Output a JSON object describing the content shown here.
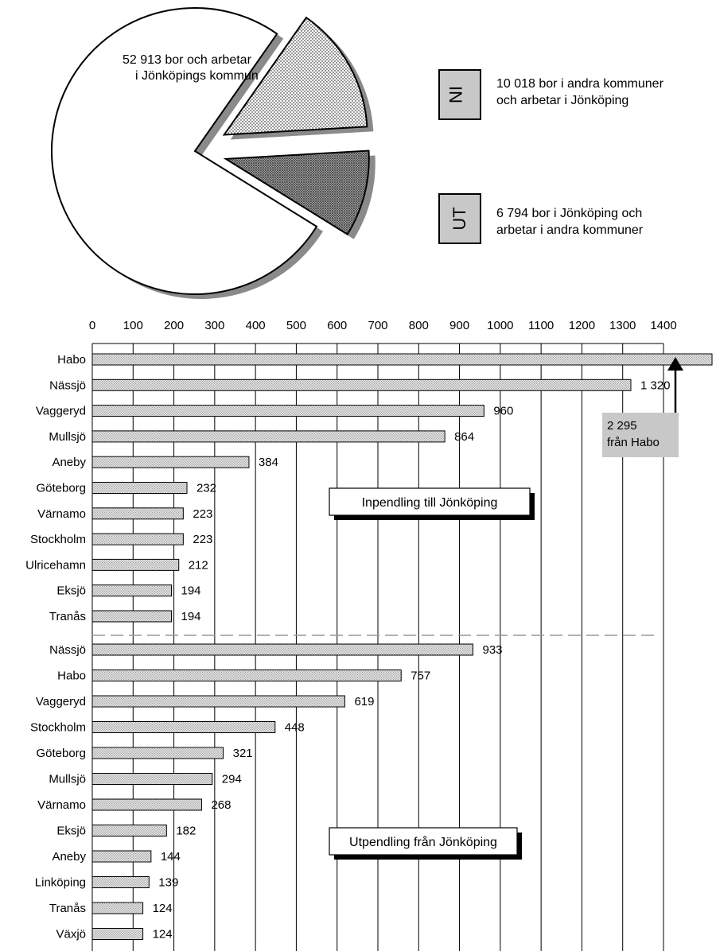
{
  "colors": {
    "shadow": "#8a8a8a",
    "bar_fill": "#e6e6e6",
    "callout_fill": "#c8c8c8",
    "divider": "#999999",
    "grid": "#000000"
  },
  "chart_data": [
    {
      "type": "pie",
      "slices": [
        {
          "label": "52 913 bor och arbetar i Jönköpings kommun",
          "value": 52913,
          "pattern": "white"
        },
        {
          "label": "10 018 bor i andra kommuner och arbetar i Jönköping",
          "value": 10018,
          "pattern": "light-dots",
          "badge": "IN"
        },
        {
          "label": "6 794 bor i Jönköping och arbetar i andra kommuner",
          "value": 6794,
          "pattern": "dark-dots",
          "badge": "UT"
        }
      ],
      "text": {
        "main_line1": "52 913 bor och arbetar",
        "main_line2": "i Jönköpings kommun",
        "in_badge": "IN",
        "in_line1": "10 018 bor i andra kommuner",
        "in_line2": "och arbetar i Jönköping",
        "ut_badge": "UT",
        "ut_line1": "6 794 bor i Jönköping och",
        "ut_line2": "arbetar i andra kommuner"
      }
    },
    {
      "type": "bar",
      "orientation": "horizontal",
      "xlim": [
        0,
        1400
      ],
      "x_ticks": [
        0,
        100,
        200,
        300,
        400,
        500,
        600,
        700,
        800,
        900,
        1000,
        1100,
        1200,
        1300,
        1400
      ],
      "grid": true,
      "groups": [
        {
          "name": "Inpendling till Jönköping",
          "items": [
            {
              "label": "Habo",
              "value": 2295,
              "shown": ""
            },
            {
              "label": "Nässjö",
              "value": 1320,
              "shown": "1 320"
            },
            {
              "label": "Vaggeryd",
              "value": 960,
              "shown": "960"
            },
            {
              "label": "Mullsjö",
              "value": 864,
              "shown": "864"
            },
            {
              "label": "Aneby",
              "value": 384,
              "shown": "384"
            },
            {
              "label": "Göteborg",
              "value": 232,
              "shown": "232"
            },
            {
              "label": "Värnamo",
              "value": 223,
              "shown": "223"
            },
            {
              "label": "Stockholm",
              "value": 223,
              "shown": "223"
            },
            {
              "label": "Ulricehamn",
              "value": 212,
              "shown": "212"
            },
            {
              "label": "Eksjö",
              "value": 194,
              "shown": "194"
            },
            {
              "label": "Tranås",
              "value": 194,
              "shown": "194"
            }
          ]
        },
        {
          "name": "Utpendling från Jönköping",
          "items": [
            {
              "label": "Nässjö",
              "value": 933,
              "shown": "933"
            },
            {
              "label": "Habo",
              "value": 757,
              "shown": "757"
            },
            {
              "label": "Vaggeryd",
              "value": 619,
              "shown": "619"
            },
            {
              "label": "Stockholm",
              "value": 448,
              "shown": "448"
            },
            {
              "label": "Göteborg",
              "value": 321,
              "shown": "321"
            },
            {
              "label": "Mullsjö",
              "value": 294,
              "shown": "294"
            },
            {
              "label": "Värnamo",
              "value": 268,
              "shown": "268"
            },
            {
              "label": "Eksjö",
              "value": 182,
              "shown": "182"
            },
            {
              "label": "Aneby",
              "value": 144,
              "shown": "144"
            },
            {
              "label": "Linköping",
              "value": 139,
              "shown": "139"
            },
            {
              "label": "Tranås",
              "value": 124,
              "shown": "124"
            },
            {
              "label": "Växjö",
              "value": 124,
              "shown": "124"
            }
          ]
        }
      ],
      "callout": {
        "line1": "2 295",
        "line2": "från Habo"
      }
    }
  ]
}
